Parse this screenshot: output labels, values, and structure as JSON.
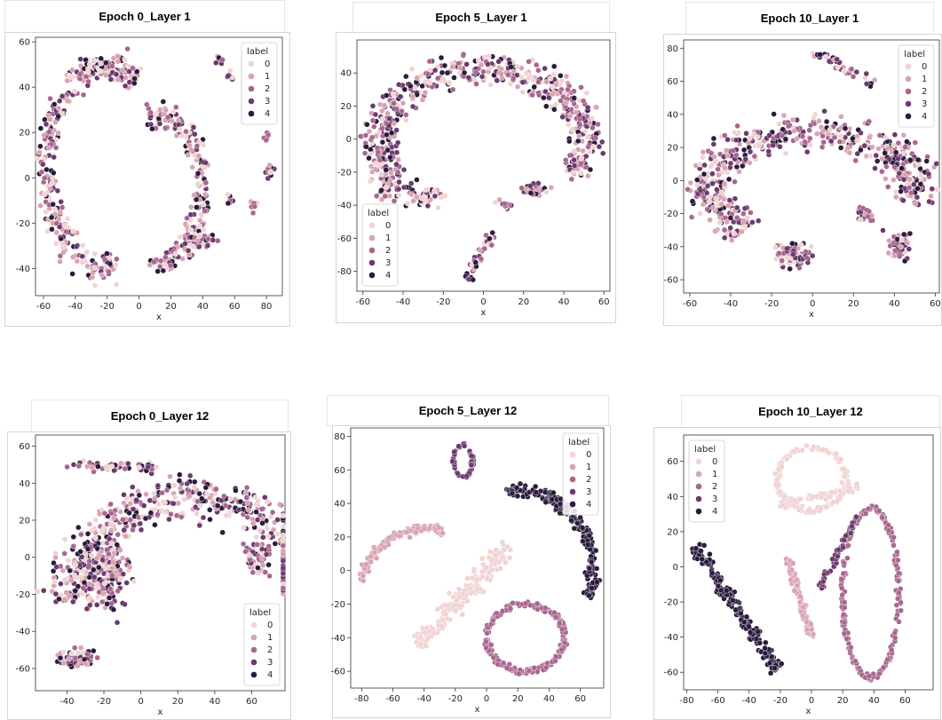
{
  "palette": {
    "0": "#f0d3d2",
    "1": "#d9a3b0",
    "2": "#a9668f",
    "3": "#6b3a6e",
    "4": "#2a1b3d"
  },
  "chart_data": [
    {
      "type": "scatter",
      "title": "Epoch 0_Layer 1",
      "xlabel": "x",
      "ylabel": "",
      "xlim": [
        -65,
        90
      ],
      "ylim": [
        -52,
        62
      ],
      "xticks": [
        -60,
        -40,
        -20,
        0,
        20,
        40,
        60,
        80
      ],
      "yticks": [
        -40,
        -20,
        0,
        20,
        40,
        60
      ],
      "legend": {
        "title": "label",
        "entries": [
          "0",
          "1",
          "2",
          "3",
          "4"
        ],
        "placement": "top-right"
      },
      "clusters": [
        {
          "shape": "arc",
          "cx": -20,
          "cy": 5,
          "rx": 38,
          "ry": 45,
          "a0": 60,
          "a1": 280,
          "width": 10,
          "n": 320,
          "labels": "mixed"
        },
        {
          "shape": "arc",
          "cx": 12,
          "cy": -5,
          "rx": 28,
          "ry": 32,
          "a0": -100,
          "a1": 110,
          "width": 9,
          "n": 220,
          "labels": "mixed"
        },
        {
          "shape": "blob",
          "cx": -22,
          "cy": 48,
          "rx": 12,
          "ry": 6,
          "n": 50,
          "labels": "mixed"
        },
        {
          "shape": "blob",
          "cx": 50,
          "cy": 52,
          "rx": 4,
          "ry": 3,
          "n": 10,
          "labels": "mixed"
        },
        {
          "shape": "blob",
          "cx": 57,
          "cy": 45,
          "rx": 3,
          "ry": 3,
          "n": 8,
          "labels": "mixed"
        },
        {
          "shape": "blob",
          "cx": 80,
          "cy": 18,
          "rx": 3,
          "ry": 3,
          "n": 8,
          "labels": "mixed"
        },
        {
          "shape": "blob",
          "cx": 82,
          "cy": 3,
          "rx": 4,
          "ry": 5,
          "n": 12,
          "labels": "mixed"
        },
        {
          "shape": "blob",
          "cx": 72,
          "cy": -13,
          "rx": 4,
          "ry": 4,
          "n": 10,
          "labels": "mixed"
        },
        {
          "shape": "blob",
          "cx": 57,
          "cy": -10,
          "rx": 3,
          "ry": 4,
          "n": 8,
          "labels": "mixed"
        },
        {
          "shape": "blob",
          "cx": 40,
          "cy": -28,
          "rx": 12,
          "ry": 5,
          "n": 40,
          "labels": "mixed"
        }
      ]
    },
    {
      "type": "scatter",
      "title": "Epoch 5_Layer 1",
      "xlabel": "x",
      "ylabel": "",
      "xlim": [
        -63,
        63
      ],
      "ylim": [
        -92,
        60
      ],
      "xticks": [
        -60,
        -40,
        -20,
        0,
        20,
        40,
        60
      ],
      "yticks": [
        -80,
        -60,
        -40,
        -20,
        0,
        20,
        40
      ],
      "legend": {
        "title": "label",
        "entries": [
          "0",
          "1",
          "2",
          "3",
          "4"
        ],
        "placement": "bottom-left"
      },
      "clusters": [
        {
          "shape": "arc",
          "cx": 0,
          "cy": -5,
          "rx": 52,
          "ry": 48,
          "a0": -5,
          "a1": 220,
          "width": 14,
          "n": 520,
          "labels": "mixed"
        },
        {
          "shape": "blob",
          "cx": -30,
          "cy": -35,
          "rx": 12,
          "ry": 8,
          "n": 50,
          "labels": "mixed"
        },
        {
          "shape": "blob",
          "cx": 47,
          "cy": -15,
          "rx": 10,
          "ry": 12,
          "n": 50,
          "labels": "mixed"
        },
        {
          "shape": "blob",
          "cx": 25,
          "cy": -30,
          "rx": 10,
          "ry": 5,
          "n": 30,
          "labels": "mixed"
        },
        {
          "shape": "blob",
          "cx": 10,
          "cy": -40,
          "rx": 5,
          "ry": 4,
          "n": 12,
          "labels": "mixed"
        },
        {
          "shape": "line",
          "x0": -8,
          "y0": -85,
          "x1": 5,
          "y1": -55,
          "width": 4,
          "n": 40,
          "labels": "mixed"
        }
      ]
    },
    {
      "type": "scatter",
      "title": "Epoch 10_Layer 1",
      "xlabel": "x",
      "ylabel": "",
      "xlim": [
        -63,
        62
      ],
      "ylim": [
        -68,
        85
      ],
      "xticks": [
        -60,
        -40,
        -20,
        0,
        20,
        40,
        60
      ],
      "yticks": [
        -60,
        -40,
        -20,
        0,
        20,
        40,
        60,
        80
      ],
      "legend": {
        "title": "label",
        "entries": [
          "0",
          "1",
          "2",
          "3",
          "4"
        ],
        "placement": "top-right"
      },
      "clusters": [
        {
          "shape": "arc",
          "cx": 0,
          "cy": -5,
          "rx": 50,
          "ry": 35,
          "a0": -15,
          "a1": 230,
          "width": 16,
          "n": 560,
          "labels": "mixed"
        },
        {
          "shape": "blob",
          "cx": -10,
          "cy": -45,
          "rx": 14,
          "ry": 10,
          "n": 80,
          "labels": "mixed"
        },
        {
          "shape": "blob",
          "cx": 42,
          "cy": -40,
          "rx": 8,
          "ry": 12,
          "n": 50,
          "labels": "mixed"
        },
        {
          "shape": "blob",
          "cx": 25,
          "cy": -20,
          "rx": 6,
          "ry": 8,
          "n": 25,
          "labels": "mixed"
        },
        {
          "shape": "line",
          "x0": 0,
          "y0": 78,
          "x1": 30,
          "y1": 58,
          "width": 4,
          "n": 40,
          "labels": "mixed"
        }
      ]
    },
    {
      "type": "scatter",
      "title": "Epoch 0_Layer 12",
      "xlabel": "x",
      "ylabel": "",
      "xlim": [
        -57,
        78
      ],
      "ylim": [
        -72,
        66
      ],
      "xticks": [
        -40,
        -20,
        0,
        20,
        40,
        60
      ],
      "yticks": [
        -60,
        -40,
        -20,
        0,
        20,
        40,
        60
      ],
      "legend": {
        "title": "label",
        "entries": [
          "0",
          "1",
          "2",
          "3",
          "4"
        ],
        "placement": "bottom-right"
      },
      "clusters": [
        {
          "shape": "arc",
          "cx": 30,
          "cy": -30,
          "rx": 70,
          "ry": 62,
          "a0": 10,
          "a1": 175,
          "width": 18,
          "n": 560,
          "labels": "mixed"
        },
        {
          "shape": "blob",
          "cx": -20,
          "cy": -10,
          "rx": 20,
          "ry": 28,
          "n": 200,
          "labels": "mixed"
        },
        {
          "shape": "blob",
          "cx": -35,
          "cy": -55,
          "rx": 15,
          "ry": 8,
          "n": 70,
          "labels": "mixed"
        },
        {
          "shape": "line",
          "x0": -40,
          "y0": 50,
          "x1": 10,
          "y1": 48,
          "width": 5,
          "n": 50,
          "labels": "mixed"
        },
        {
          "shape": "blob",
          "cx": 62,
          "cy": 0,
          "rx": 10,
          "ry": 12,
          "n": 60,
          "labels": "mixed"
        }
      ]
    },
    {
      "type": "scatter",
      "title": "Epoch 5_Layer 12",
      "xlabel": "x",
      "ylabel": "",
      "xlim": [
        -87,
        75
      ],
      "ylim": [
        -70,
        85
      ],
      "xticks": [
        -80,
        -60,
        -40,
        -20,
        0,
        20,
        40,
        60
      ],
      "yticks": [
        -60,
        -40,
        -20,
        0,
        20,
        40,
        60,
        80
      ],
      "legend": {
        "title": "label",
        "entries": [
          "0",
          "1",
          "2",
          "3",
          "4"
        ],
        "placement": "top-right"
      },
      "clusters": [
        {
          "shape": "arc",
          "cx": 20,
          "cy": 0,
          "rx": 48,
          "ry": 48,
          "a0": -20,
          "a1": 100,
          "width": 6,
          "n": 200,
          "labels": "4"
        },
        {
          "shape": "arc",
          "cx": -35,
          "cy": -10,
          "rx": 45,
          "ry": 35,
          "a0": 80,
          "a1": 175,
          "width": 4,
          "n": 110,
          "labels": "1"
        },
        {
          "shape": "line",
          "x0": -45,
          "y0": -45,
          "x1": 15,
          "y1": 15,
          "width": 9,
          "n": 200,
          "labels": "0"
        },
        {
          "shape": "ring",
          "cx": 25,
          "cy": -40,
          "rx": 25,
          "ry": 20,
          "width": 3,
          "n": 210,
          "labels": "2"
        },
        {
          "shape": "ring",
          "cx": -15,
          "cy": 65,
          "rx": 6,
          "ry": 10,
          "width": 1.5,
          "n": 50,
          "labels": "3"
        }
      ]
    },
    {
      "type": "scatter",
      "title": "Epoch 10_Layer 12",
      "xlabel": "x",
      "ylabel": "",
      "xlim": [
        -82,
        78
      ],
      "ylim": [
        -70,
        75
      ],
      "xticks": [
        -80,
        -60,
        -40,
        -20,
        0,
        20,
        40,
        60
      ],
      "yticks": [
        -60,
        -40,
        -20,
        0,
        20,
        40,
        60
      ],
      "legend": {
        "title": "label",
        "entries": [
          "0",
          "1",
          "2",
          "3",
          "4"
        ],
        "placement": "top-left"
      },
      "clusters": [
        {
          "shape": "line",
          "x0": -75,
          "y0": 12,
          "x1": -22,
          "y1": -58,
          "width": 6,
          "n": 200,
          "labels": "4"
        },
        {
          "shape": "ring",
          "cx": 0,
          "cy": 50,
          "rx": 22,
          "ry": 18,
          "width": 3,
          "n": 140,
          "labels": "0"
        },
        {
          "shape": "line",
          "x0": -20,
          "y0": 35,
          "x1": 30,
          "y1": 45,
          "width": 3,
          "n": 60,
          "labels": "0"
        },
        {
          "shape": "line",
          "x0": -15,
          "y0": 5,
          "x1": 0,
          "y1": -40,
          "width": 3.5,
          "n": 90,
          "labels": "1"
        },
        {
          "shape": "ring",
          "cx": 38,
          "cy": -15,
          "rx": 18,
          "ry": 48,
          "width": 2.5,
          "n": 220,
          "labels": "2"
        },
        {
          "shape": "line",
          "x0": 5,
          "y0": -12,
          "x1": 30,
          "y1": 30,
          "width": 2.5,
          "n": 60,
          "labels": "3"
        }
      ]
    }
  ]
}
